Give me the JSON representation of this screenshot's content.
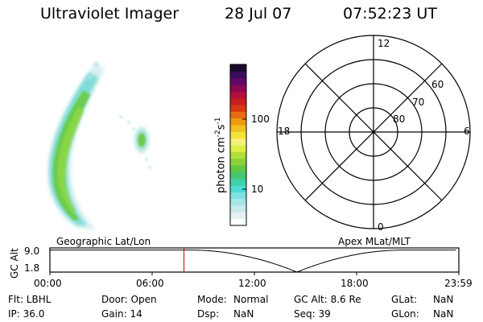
{
  "header": {
    "title": "Ultraviolet Imager",
    "date": "28 Jul 07",
    "time": "07:52:23 UT"
  },
  "colorbar": {
    "label": "photon cm",
    "label_sup1": "-2",
    "label_mid": "s",
    "label_sup2": "-1",
    "ticks": [
      "100",
      "10"
    ],
    "colors": [
      "#ffffff",
      "#e6f2f2",
      "#c8ecec",
      "#a6e6e6",
      "#7ee2e0",
      "#4cdcd0",
      "#3fd2a6",
      "#45c870",
      "#60c845",
      "#8ad23a",
      "#b4de3a",
      "#dcee48",
      "#f4f27a",
      "#f2e23c",
      "#f2c21e",
      "#f09a14",
      "#e86a12",
      "#d83a10",
      "#c81c24",
      "#b0103a",
      "#8a0a52",
      "#62086a",
      "#3a0c5a",
      "#180c2c"
    ]
  },
  "polar_plot": {
    "labels": {
      "top": "12",
      "left": "18",
      "right": "6",
      "bottom": "0"
    },
    "lat_labels": [
      "60",
      "70",
      "80"
    ]
  },
  "timeline": {
    "left_title": "Geographic Lat/Lon",
    "right_title": "Apex MLat/MLT",
    "y_axis_label": "GC Alt",
    "y_ticks": [
      "9.0",
      "1.8"
    ],
    "x_ticks": [
      "00:00",
      "06:00",
      "12:00",
      "18:00",
      "23:59"
    ],
    "current_marker": "07:52",
    "marker_color": "#cc2020"
  },
  "info": {
    "flt": "Flt: LBHL",
    "ip": "IP: 36.0",
    "door": "Door: Open",
    "gain": "Gain: 14",
    "mode_label": "Mode:",
    "mode_value": "Normal",
    "dsp_label": "Dsp:",
    "dsp_value": "NaN",
    "gcalt": "GC Alt: 8.6 Re",
    "seq": "Seq: 39",
    "glat_label": "GLat:",
    "glat_value": "NaN",
    "glon_label": "GLon:",
    "glon_value": "NaN"
  }
}
